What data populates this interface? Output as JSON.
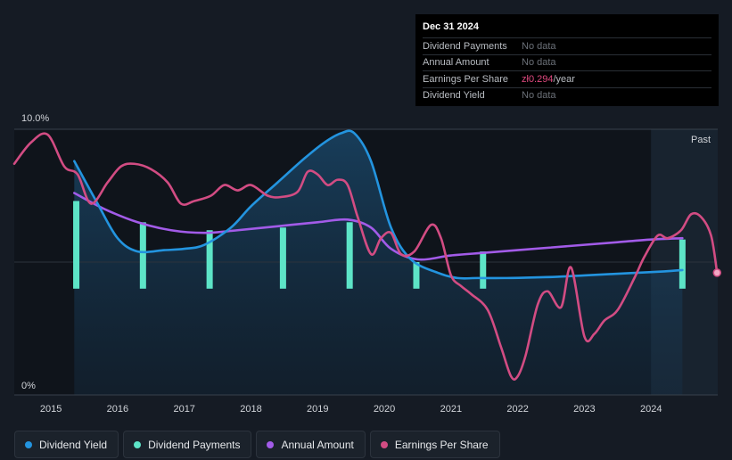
{
  "tooltip": {
    "date": "Dec 31 2024",
    "rows": [
      {
        "label": "Dividend Payments",
        "value": "No data"
      },
      {
        "label": "Annual Amount",
        "value": "No data"
      },
      {
        "label": "Earnings Per Share",
        "value": "zł0.294",
        "unit": "/year"
      },
      {
        "label": "Dividend Yield",
        "value": "No data"
      }
    ]
  },
  "past_label": "Past",
  "legend": [
    {
      "label": "Dividend Yield",
      "color": "#2394df"
    },
    {
      "label": "Dividend Payments",
      "color": "#5de4c7"
    },
    {
      "label": "Annual Amount",
      "color": "#a25be8"
    },
    {
      "label": "Earnings Per Share",
      "color": "#d24c83"
    }
  ],
  "colors": {
    "background": "#151b24",
    "yield": "#2394df",
    "payments": "#5de4c7",
    "annual": "#a25be8",
    "eps": "#d24c83",
    "grid": "#39414c"
  },
  "chart_data": {
    "type": "line",
    "title": "",
    "xlabel": "",
    "ylabel": "",
    "ylim": [
      0,
      10
    ],
    "xlim": [
      2014.45,
      2025.0
    ],
    "y_tick_labels": [
      "10.0%",
      "0%"
    ],
    "x_ticks": [
      2015,
      2016,
      2017,
      2018,
      2019,
      2020,
      2021,
      2022,
      2023,
      2024
    ],
    "past_region_start": 2024.0,
    "series": [
      {
        "name": "Dividend Yield",
        "x": [
          2015.35,
          2015.7,
          2016.0,
          2016.3,
          2016.7,
          2017.0,
          2017.3,
          2017.7,
          2018.0,
          2018.4,
          2018.8,
          2019.1,
          2019.35,
          2019.55,
          2019.8,
          2020.1,
          2020.4,
          2020.8,
          2021.1,
          2021.4,
          2021.8,
          2022.2,
          2022.6,
          2023.0,
          2023.4,
          2023.8,
          2024.2,
          2024.47
        ],
        "values": [
          8.8,
          7.2,
          5.9,
          5.4,
          5.45,
          5.5,
          5.65,
          6.3,
          7.1,
          8.0,
          8.9,
          9.5,
          9.85,
          9.85,
          8.8,
          6.3,
          5.1,
          4.6,
          4.4,
          4.4,
          4.4,
          4.42,
          4.45,
          4.5,
          4.55,
          4.6,
          4.65,
          4.7
        ]
      },
      {
        "name": "Annual Amount",
        "x": [
          2015.35,
          2015.8,
          2016.3,
          2016.8,
          2017.3,
          2017.8,
          2018.4,
          2019.0,
          2019.45,
          2019.8,
          2020.1,
          2020.5,
          2021.0,
          2021.5,
          2022.0,
          2022.5,
          2023.0,
          2023.5,
          2024.0,
          2024.47
        ],
        "values": [
          7.6,
          7.0,
          6.5,
          6.2,
          6.1,
          6.2,
          6.35,
          6.5,
          6.6,
          6.3,
          5.5,
          5.1,
          5.25,
          5.35,
          5.45,
          5.55,
          5.65,
          5.75,
          5.85,
          5.9
        ]
      },
      {
        "name": "Earnings Per Share",
        "x": [
          2014.45,
          2014.7,
          2014.95,
          2015.2,
          2015.4,
          2015.6,
          2015.85,
          2016.05,
          2016.25,
          2016.5,
          2016.75,
          2016.95,
          2017.15,
          2017.4,
          2017.6,
          2017.8,
          2018.0,
          2018.25,
          2018.45,
          2018.7,
          2018.85,
          2019.0,
          2019.15,
          2019.3,
          2019.45,
          2019.6,
          2019.8,
          2019.95,
          2020.1,
          2020.25,
          2020.45,
          2020.7,
          2020.85,
          2021.0,
          2021.15,
          2021.3,
          2021.55,
          2021.75,
          2021.9,
          2022.0,
          2022.12,
          2022.3,
          2022.45,
          2022.65,
          2022.8,
          2023.0,
          2023.15,
          2023.3,
          2023.5,
          2023.75,
          2023.9,
          2024.1,
          2024.25,
          2024.45,
          2024.6,
          2024.75,
          2024.9,
          2024.99
        ],
        "values": [
          8.7,
          9.5,
          9.8,
          8.6,
          8.3,
          7.2,
          8.0,
          8.6,
          8.7,
          8.5,
          8.0,
          7.2,
          7.3,
          7.5,
          7.9,
          7.7,
          7.9,
          7.5,
          7.45,
          7.65,
          8.4,
          8.3,
          7.9,
          8.1,
          7.9,
          6.7,
          5.3,
          5.9,
          6.1,
          5.3,
          5.4,
          6.4,
          5.9,
          4.5,
          4.1,
          3.8,
          3.2,
          1.8,
          0.7,
          0.7,
          1.5,
          3.4,
          3.9,
          3.3,
          4.8,
          2.2,
          2.3,
          2.8,
          3.2,
          4.4,
          5.2,
          6.0,
          5.9,
          6.2,
          6.8,
          6.7,
          6.0,
          4.6
        ]
      },
      {
        "name": "Dividend Payments",
        "type": "bar",
        "x": [
          2015.38,
          2016.38,
          2017.38,
          2018.48,
          2019.48,
          2020.48,
          2021.48,
          2024.47
        ],
        "values": [
          7.3,
          6.5,
          6.2,
          6.3,
          6.5,
          5.0,
          5.4,
          5.85
        ]
      }
    ],
    "bar_baseline": 4.0
  }
}
